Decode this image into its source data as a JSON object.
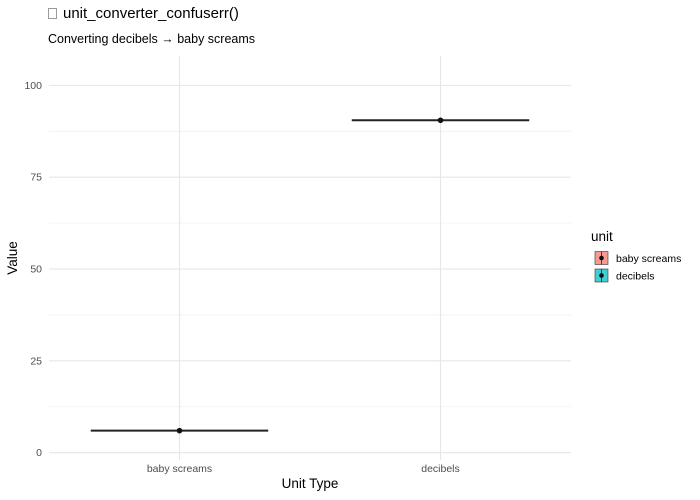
{
  "chart_data": {
    "type": "crossbar",
    "title": "unit_converter_confuserr()",
    "subtitle": "Converting decibels → baby screams",
    "xlabel": "Unit Type",
    "ylabel": "Value",
    "categories": [
      "baby screams",
      "decibels"
    ],
    "series": [
      {
        "name": "baby screams",
        "category": "baby screams",
        "value": 6,
        "color": "#F8766D"
      },
      {
        "name": "decibels",
        "category": "decibels",
        "value": 90.5,
        "color": "#00BFC4"
      }
    ],
    "yticks": [
      0,
      25,
      50,
      75,
      100
    ],
    "ylim": [
      -2,
      108
    ],
    "grid": true,
    "legend": {
      "title": "unit",
      "placement": "right",
      "entries": [
        "baby screams",
        "decibels"
      ]
    }
  }
}
